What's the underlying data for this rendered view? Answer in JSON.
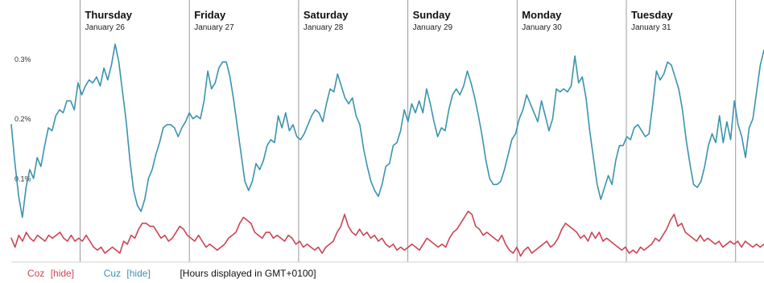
{
  "chart_data": {
    "type": "line",
    "days": [
      {
        "name": "Thursday",
        "date": "January 26"
      },
      {
        "name": "Friday",
        "date": "January 27"
      },
      {
        "name": "Saturday",
        "date": "January 28"
      },
      {
        "name": "Sunday",
        "date": "January 29"
      },
      {
        "name": "Monday",
        "date": "January 30"
      },
      {
        "name": "Tuesday",
        "date": "January 31"
      }
    ],
    "y_ticks": [
      {
        "value": 0.1,
        "label": "0.1%"
      },
      {
        "value": 0.2,
        "label": "0.2%"
      },
      {
        "value": 0.3,
        "label": "0.3%"
      }
    ],
    "ylim": [
      -0.03,
      0.355
    ],
    "x_range_days": [
      -0.63,
      6.26
    ],
    "grid": false,
    "series": [
      {
        "name": "Cuz",
        "color": "#3a93ae",
        "values": [
          0.2,
          0.135,
          0.08,
          0.045,
          0.095,
          0.125,
          0.11,
          0.145,
          0.13,
          0.165,
          0.195,
          0.19,
          0.215,
          0.225,
          0.22,
          0.24,
          0.24,
          0.225,
          0.27,
          0.25,
          0.265,
          0.275,
          0.27,
          0.28,
          0.265,
          0.295,
          0.275,
          0.3,
          0.335,
          0.305,
          0.255,
          0.205,
          0.14,
          0.09,
          0.065,
          0.055,
          0.075,
          0.11,
          0.125,
          0.15,
          0.17,
          0.195,
          0.2,
          0.2,
          0.195,
          0.18,
          0.195,
          0.205,
          0.22,
          0.21,
          0.215,
          0.21,
          0.24,
          0.29,
          0.26,
          0.27,
          0.295,
          0.305,
          0.305,
          0.28,
          0.24,
          0.195,
          0.15,
          0.105,
          0.09,
          0.105,
          0.135,
          0.125,
          0.14,
          0.165,
          0.175,
          0.17,
          0.215,
          0.195,
          0.22,
          0.19,
          0.2,
          0.18,
          0.175,
          0.185,
          0.2,
          0.215,
          0.225,
          0.22,
          0.205,
          0.235,
          0.26,
          0.255,
          0.285,
          0.265,
          0.245,
          0.235,
          0.245,
          0.215,
          0.2,
          0.16,
          0.13,
          0.105,
          0.09,
          0.08,
          0.1,
          0.13,
          0.135,
          0.165,
          0.17,
          0.19,
          0.225,
          0.205,
          0.235,
          0.22,
          0.24,
          0.22,
          0.26,
          0.235,
          0.205,
          0.18,
          0.195,
          0.19,
          0.225,
          0.25,
          0.26,
          0.25,
          0.265,
          0.29,
          0.27,
          0.245,
          0.215,
          0.18,
          0.14,
          0.11,
          0.1,
          0.1,
          0.105,
          0.125,
          0.15,
          0.175,
          0.185,
          0.21,
          0.225,
          0.25,
          0.235,
          0.22,
          0.205,
          0.24,
          0.215,
          0.19,
          0.21,
          0.26,
          0.255,
          0.26,
          0.255,
          0.265,
          0.315,
          0.27,
          0.28,
          0.245,
          0.19,
          0.145,
          0.1,
          0.075,
          0.095,
          0.115,
          0.1,
          0.14,
          0.165,
          0.165,
          0.18,
          0.175,
          0.195,
          0.2,
          0.19,
          0.18,
          0.185,
          0.235,
          0.29,
          0.275,
          0.285,
          0.305,
          0.3,
          0.28,
          0.26,
          0.225,
          0.175,
          0.135,
          0.1,
          0.095,
          0.105,
          0.13,
          0.165,
          0.185,
          0.17,
          0.215,
          0.17,
          0.205,
          0.175,
          0.24,
          0.2,
          0.18,
          0.145,
          0.195,
          0.21,
          0.255,
          0.3,
          0.325
        ]
      },
      {
        "name": "Coz",
        "color": "#cc4455",
        "values": [
          0.01,
          -0.005,
          0.015,
          0.005,
          0.02,
          0.01,
          0.005,
          0.015,
          0.01,
          0.005,
          0.015,
          0.01,
          0.015,
          0.02,
          0.01,
          0.005,
          0.015,
          0.005,
          0.01,
          0.005,
          0.015,
          0.005,
          -0.005,
          -0.01,
          -0.005,
          -0.015,
          -0.01,
          -0.005,
          -0.01,
          -0.015,
          0.005,
          0.0,
          0.015,
          0.01,
          0.025,
          0.035,
          0.035,
          0.03,
          0.03,
          0.02,
          0.01,
          0.015,
          0.005,
          0.01,
          0.02,
          0.03,
          0.025,
          0.015,
          0.01,
          0.005,
          0.015,
          0.005,
          -0.005,
          0.0,
          -0.005,
          -0.01,
          -0.005,
          0.0,
          0.01,
          0.015,
          0.02,
          0.035,
          0.045,
          0.04,
          0.035,
          0.02,
          0.015,
          0.01,
          0.02,
          0.02,
          0.01,
          0.015,
          0.01,
          0.005,
          0.015,
          0.01,
          0.0,
          0.005,
          -0.005,
          0.0,
          -0.005,
          -0.01,
          -0.005,
          -0.015,
          -0.005,
          0.0,
          0.005,
          0.02,
          0.03,
          0.05,
          0.03,
          0.02,
          0.015,
          0.025,
          0.015,
          0.02,
          0.01,
          0.015,
          0.005,
          0.01,
          0.0,
          -0.005,
          0.0,
          -0.01,
          -0.005,
          -0.01,
          -0.005,
          0.0,
          -0.005,
          -0.01,
          0.0,
          0.01,
          0.005,
          0.0,
          -0.005,
          0.0,
          -0.005,
          0.01,
          0.02,
          0.025,
          0.035,
          0.045,
          0.055,
          0.05,
          0.03,
          0.025,
          0.015,
          0.02,
          0.015,
          0.01,
          0.005,
          0.015,
          0.0,
          -0.01,
          -0.015,
          -0.005,
          -0.02,
          -0.01,
          -0.005,
          -0.015,
          -0.01,
          -0.005,
          0.0,
          0.005,
          -0.005,
          0.0,
          0.01,
          0.025,
          0.035,
          0.03,
          0.025,
          0.02,
          0.01,
          0.015,
          0.005,
          0.02,
          0.01,
          0.02,
          0.005,
          0.01,
          0.005,
          0.0,
          -0.005,
          -0.01,
          -0.005,
          -0.015,
          -0.01,
          -0.015,
          -0.005,
          -0.01,
          -0.005,
          0.0,
          0.01,
          0.005,
          0.015,
          0.025,
          0.04,
          0.05,
          0.03,
          0.035,
          0.02,
          0.015,
          0.01,
          0.005,
          0.015,
          0.005,
          0.01,
          0.005,
          0.0,
          0.005,
          -0.005,
          0.0,
          0.005,
          0.0,
          0.005,
          -0.005,
          0.005,
          0.0,
          -0.005,
          0.0,
          -0.005,
          0.0
        ]
      }
    ],
    "legend": {
      "items": [
        {
          "label": "Coz",
          "hide_label": "[hide]",
          "color": "#cc4455"
        },
        {
          "label": "Cuz",
          "hide_label": "[hide]",
          "color": "#3a93ae"
        }
      ],
      "note": "[Hours displayed in GMT+0100]"
    }
  }
}
